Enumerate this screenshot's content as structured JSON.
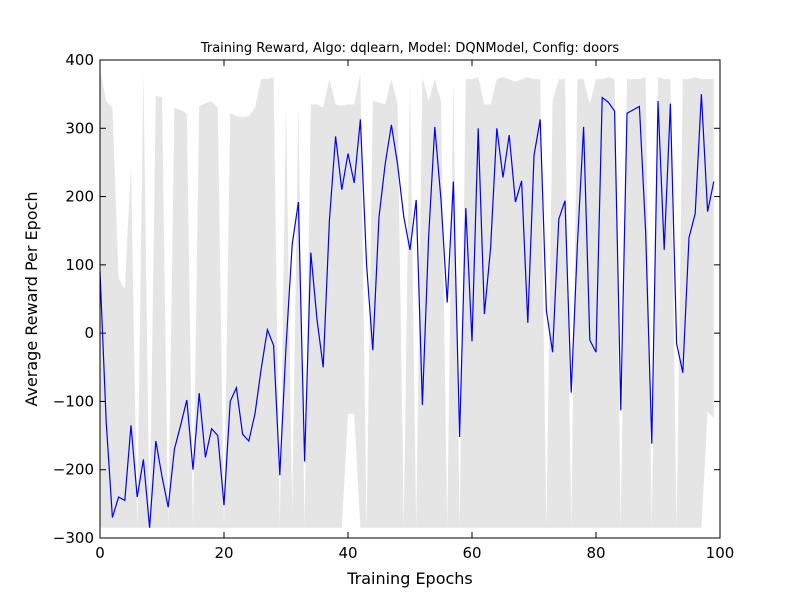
{
  "chart_data": {
    "type": "line",
    "title": "Training Reward, Algo: dqlearn, Model: DQNModel, Config: doors",
    "xlabel": "Training Epochs",
    "ylabel": "Average Reward Per Epoch",
    "xlim": [
      0,
      100
    ],
    "ylim": [
      -300,
      400
    ],
    "xticks": [
      0,
      20,
      40,
      60,
      80,
      100
    ],
    "yticks": [
      -300,
      -200,
      -100,
      0,
      100,
      200,
      300,
      400
    ],
    "xtick_labels": [
      "0",
      "20",
      "40",
      "60",
      "80",
      "100"
    ],
    "ytick_labels": [
      "−300",
      "−200",
      "−100",
      "0",
      "100",
      "200",
      "300",
      "400"
    ],
    "grid": false,
    "colors": {
      "line": "#0000ff",
      "band": "#e5e5e5"
    },
    "series": [
      {
        "x": [
          0,
          1,
          2,
          3,
          4,
          5,
          6,
          7,
          8,
          9,
          10,
          11,
          12,
          13,
          14,
          15,
          16,
          17,
          18,
          19,
          20,
          21,
          22,
          23,
          24,
          25,
          26,
          27,
          28,
          29,
          30,
          31,
          32,
          33,
          34,
          35,
          36,
          37,
          38,
          39,
          40,
          41,
          42,
          43,
          44,
          45,
          46,
          47,
          48,
          49,
          50,
          51,
          52,
          53,
          54,
          55,
          56,
          57,
          58,
          59,
          60,
          61,
          62,
          63,
          64,
          65,
          66,
          67,
          68,
          69,
          70,
          71,
          72,
          73,
          74,
          75,
          76,
          77,
          78,
          79,
          80,
          81,
          82,
          83,
          84,
          85,
          86,
          87,
          88,
          89,
          90,
          91,
          92,
          93,
          94,
          95,
          96,
          97,
          98,
          99
        ],
        "values": [
          90,
          -130,
          -270,
          -240,
          -245,
          -135,
          -240,
          -185,
          -285,
          -158,
          -210,
          -255,
          -170,
          -135,
          -98,
          -200,
          -88,
          -182,
          -140,
          -150,
          -252,
          -100,
          -80,
          -148,
          -158,
          -118,
          -52,
          5,
          -18,
          -208,
          -20,
          130,
          192,
          -188,
          118,
          20,
          -50,
          165,
          288,
          210,
          263,
          220,
          313,
          100,
          -25,
          170,
          248,
          305,
          247,
          170,
          122,
          195,
          -105,
          140,
          302,
          195,
          45,
          222,
          -152,
          183,
          -12,
          300,
          28,
          125,
          300,
          228,
          290,
          192,
          223,
          15,
          260,
          313,
          33,
          -28,
          167,
          194,
          -87,
          130,
          302,
          -10,
          -28,
          345,
          338,
          325,
          -113,
          322,
          327,
          332,
          150,
          -162,
          340,
          122,
          336,
          -15,
          -58,
          140,
          175,
          350,
          178,
          222
        ]
      },
      {
        "x": [
          0,
          1,
          2,
          3,
          4,
          5,
          6,
          7,
          8,
          9,
          10,
          11,
          12,
          13,
          14,
          15,
          16,
          17,
          18,
          19,
          20,
          21,
          22,
          23,
          24,
          25,
          26,
          27,
          28,
          29,
          30,
          31,
          32,
          33,
          34,
          35,
          36,
          37,
          38,
          39,
          40,
          41,
          42,
          43,
          44,
          45,
          46,
          47,
          48,
          49,
          50,
          51,
          52,
          53,
          54,
          55,
          56,
          57,
          58,
          59,
          60,
          61,
          62,
          63,
          64,
          65,
          66,
          67,
          68,
          69,
          70,
          71,
          72,
          73,
          74,
          75,
          76,
          77,
          78,
          79,
          80,
          81,
          82,
          83,
          84,
          85,
          86,
          87,
          88,
          89,
          90,
          91,
          92,
          93,
          94,
          95,
          96,
          97,
          98,
          99
        ],
        "values": [
          385,
          340,
          330,
          80,
          65,
          245,
          -285,
          385,
          -285,
          348,
          345,
          -285,
          330,
          327,
          322,
          -285,
          332,
          337,
          340,
          330,
          -285,
          322,
          318,
          316,
          318,
          330,
          372,
          372,
          375,
          -285,
          335,
          -260,
          335,
          -285,
          335,
          335,
          330,
          372,
          335,
          333,
          335,
          335,
          380,
          -285,
          340,
          338,
          335,
          372,
          335,
          -285,
          372,
          -285,
          375,
          340,
          372,
          340,
          -285,
          372,
          -285,
          372,
          372,
          375,
          335,
          335,
          372,
          375,
          372,
          368,
          372,
          375,
          372,
          372,
          -285,
          340,
          372,
          372,
          -285,
          372,
          372,
          335,
          372,
          372,
          375,
          372,
          -285,
          372,
          372,
          372,
          375,
          -285,
          375,
          372,
          372,
          -285,
          372,
          372,
          375,
          372,
          372,
          372
        ]
      },
      {
        "x": [
          0,
          1,
          2,
          3,
          4,
          5,
          6,
          7,
          8,
          9,
          10,
          11,
          12,
          13,
          14,
          15,
          16,
          17,
          18,
          19,
          20,
          21,
          22,
          23,
          24,
          25,
          26,
          27,
          28,
          29,
          30,
          31,
          32,
          33,
          34,
          35,
          36,
          37,
          38,
          39,
          40,
          41,
          42,
          43,
          44,
          45,
          46,
          47,
          48,
          49,
          50,
          51,
          52,
          53,
          54,
          55,
          56,
          57,
          58,
          59,
          60,
          61,
          62,
          63,
          64,
          65,
          66,
          67,
          68,
          69,
          70,
          71,
          72,
          73,
          74,
          75,
          76,
          77,
          78,
          79,
          80,
          81,
          82,
          83,
          84,
          85,
          86,
          87,
          88,
          89,
          90,
          91,
          92,
          93,
          94,
          95,
          96,
          97,
          98,
          99
        ],
        "values": [
          -285,
          -285,
          -285,
          -285,
          -285,
          -285,
          -285,
          -285,
          -285,
          -285,
          -285,
          -285,
          -285,
          -285,
          -285,
          -285,
          -285,
          -285,
          -285,
          -285,
          -285,
          -285,
          -285,
          -285,
          -285,
          -285,
          -285,
          -285,
          -285,
          -285,
          -285,
          -285,
          -285,
          -285,
          -285,
          -285,
          -285,
          -285,
          -285,
          -285,
          -118,
          -118,
          -285,
          -285,
          -285,
          -285,
          -285,
          -285,
          -285,
          -285,
          -285,
          -285,
          -285,
          -285,
          -285,
          -285,
          -285,
          -285,
          -285,
          -285,
          -285,
          -285,
          -285,
          -285,
          -285,
          -285,
          -285,
          -285,
          -285,
          -285,
          -285,
          -285,
          -285,
          -285,
          -285,
          -285,
          -285,
          -285,
          -285,
          -285,
          -285,
          -285,
          -285,
          -285,
          -285,
          -285,
          -285,
          -285,
          -285,
          -285,
          -285,
          -285,
          -285,
          -285,
          -285,
          -285,
          -285,
          -285,
          -115,
          -125
        ]
      }
    ]
  }
}
